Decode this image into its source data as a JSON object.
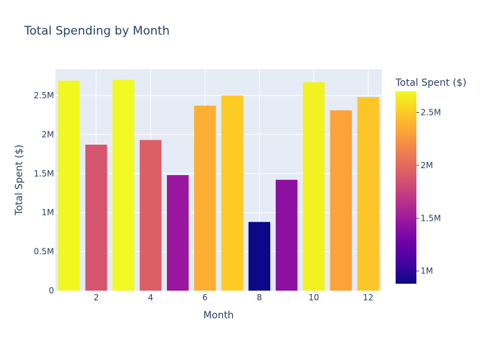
{
  "chart_data": {
    "type": "bar",
    "title": "Total Spending by Month",
    "xlabel": "Month",
    "ylabel": "Total Spent ($)",
    "x": [
      1,
      2,
      3,
      4,
      5,
      6,
      7,
      8,
      9,
      10,
      11,
      12
    ],
    "values": [
      2690000,
      1870000,
      2700000,
      1930000,
      1480000,
      2370000,
      2500000,
      880000,
      1420000,
      2670000,
      2310000,
      2480000
    ],
    "xlim": [
      0.5,
      12.5
    ],
    "ylim": [
      0,
      2837000
    ],
    "xticks": [
      2,
      4,
      6,
      8,
      10,
      12
    ],
    "xtick_labels": [
      "2",
      "4",
      "6",
      "8",
      "10",
      "12"
    ],
    "yticks": [
      0,
      500000,
      1000000,
      1500000,
      2000000,
      2500000
    ],
    "ytick_labels": [
      "0",
      "0.5M",
      "1M",
      "1.5M",
      "2M",
      "2.5M"
    ],
    "grid": true,
    "plot_background": "#e5ecf6",
    "colorbar": {
      "title": "Total Spent ($)",
      "range": [
        880000,
        2700000
      ],
      "ticks": [
        1000000,
        1500000,
        2000000,
        2500000
      ],
      "tick_labels": [
        "1M",
        "1.5M",
        "2M",
        "2.5M"
      ],
      "colorscale": [
        "#0d0887",
        "#46039f",
        "#7201a8",
        "#9c179e",
        "#bd3786",
        "#d8576b",
        "#ed7953",
        "#fb9f3a",
        "#fdca26",
        "#f0f921"
      ],
      "placement": "right"
    }
  }
}
